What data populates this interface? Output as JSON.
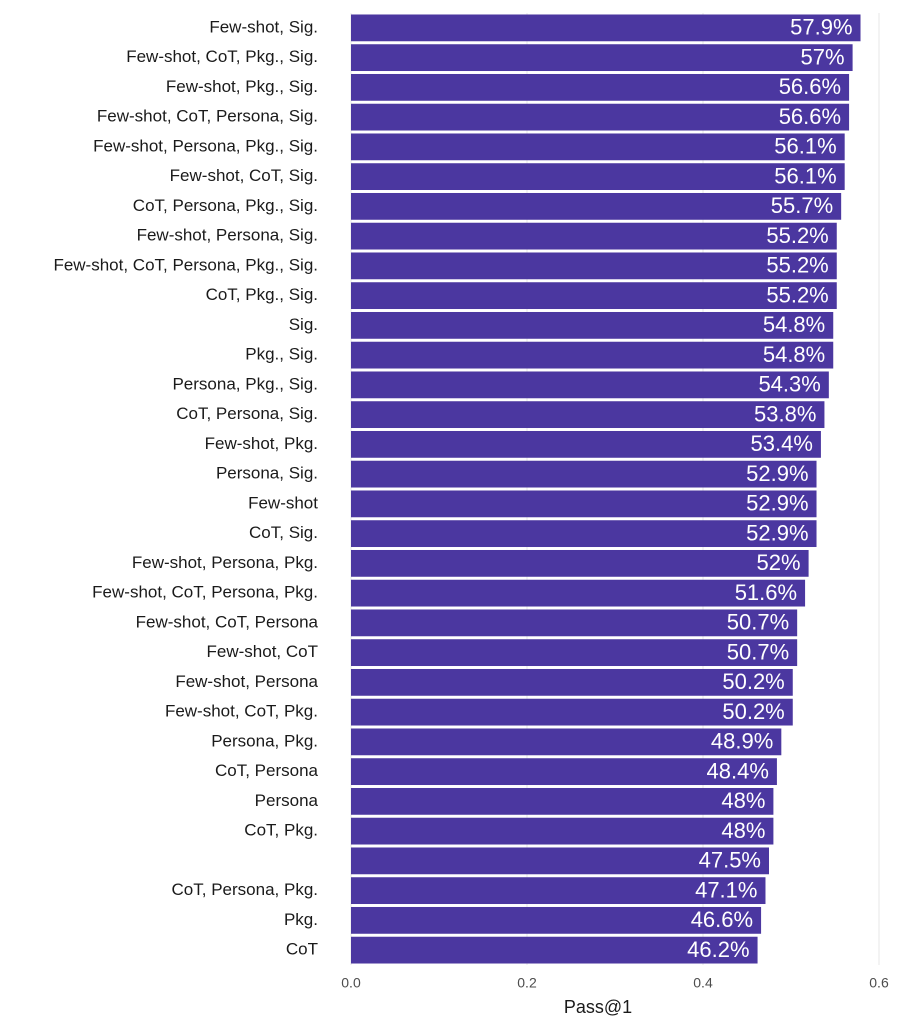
{
  "chart_data": {
    "type": "bar",
    "orientation": "horizontal",
    "x_label": "Pass@1",
    "categories": [
      "Few-shot, Sig.",
      "Few-shot, CoT, Pkg., Sig.",
      "Few-shot, Pkg., Sig.",
      "Few-shot, CoT, Persona, Sig.",
      "Few-shot, Persona, Pkg., Sig.",
      "Few-shot, CoT, Sig.",
      "CoT, Persona, Pkg., Sig.",
      "Few-shot, Persona, Sig.",
      "Few-shot, CoT, Persona, Pkg., Sig.",
      "CoT, Pkg., Sig.",
      "Sig.",
      "Pkg., Sig.",
      "Persona, Pkg., Sig.",
      "CoT, Persona, Sig.",
      "Few-shot, Pkg.",
      "Persona, Sig.",
      "Few-shot",
      "CoT, Sig.",
      "Few-shot, Persona, Pkg.",
      "Few-shot, CoT, Persona, Pkg.",
      "Few-shot, CoT, Persona",
      "Few-shot, CoT",
      "Few-shot, Persona",
      "Few-shot, CoT, Pkg.",
      "Persona, Pkg.",
      "CoT, Persona",
      "Persona",
      "CoT, Pkg.",
      null,
      "CoT, Persona, Pkg.",
      "Pkg.",
      "CoT"
    ],
    "values": [
      0.579,
      0.57,
      0.566,
      0.566,
      0.561,
      0.561,
      0.557,
      0.552,
      0.552,
      0.552,
      0.548,
      0.548,
      0.543,
      0.538,
      0.534,
      0.529,
      0.529,
      0.529,
      0.52,
      0.516,
      0.507,
      0.507,
      0.502,
      0.502,
      0.489,
      0.484,
      0.48,
      0.48,
      0.475,
      0.471,
      0.466,
      0.462
    ],
    "value_labels": [
      "57.9%",
      "57%",
      "56.6%",
      "56.6%",
      "56.1%",
      "56.1%",
      "55.7%",
      "55.2%",
      "55.2%",
      "55.2%",
      "54.8%",
      "54.8%",
      "54.3%",
      "53.8%",
      "53.4%",
      "52.9%",
      "52.9%",
      "52.9%",
      "52%",
      "51.6%",
      "50.7%",
      "50.7%",
      "50.2%",
      "50.2%",
      "48.9%",
      "48.4%",
      "48%",
      "48%",
      "47.5%",
      "47.1%",
      "46.6%",
      "46.2%"
    ],
    "color": "#4b37a0",
    "xlim": [
      0,
      0.6
    ],
    "xticks": [
      {
        "value": 0,
        "label": "0.0"
      },
      0.2,
      0.4,
      0.6
    ],
    "grid": true
  }
}
